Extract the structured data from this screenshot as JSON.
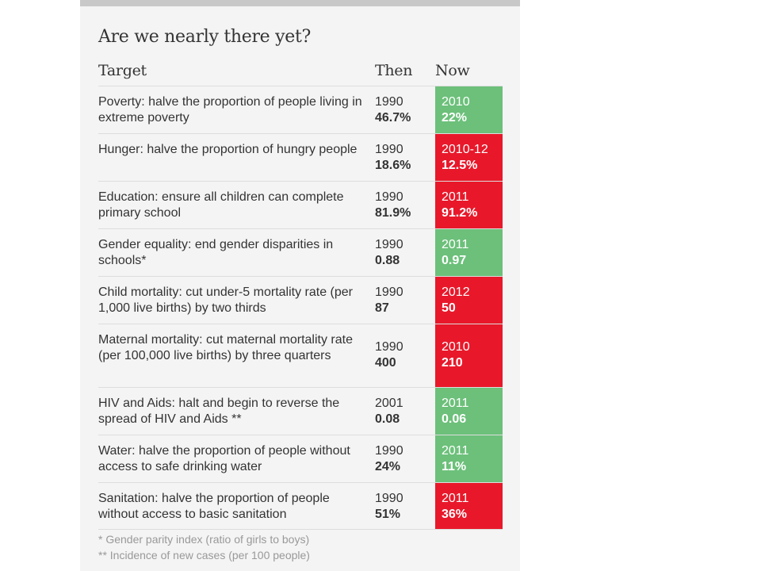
{
  "title": "Are we nearly there yet?",
  "headers": {
    "target": "Target",
    "then": "Then",
    "now": "Now"
  },
  "colors": {
    "on_track": "#6cc07a",
    "off_track": "#e8182a"
  },
  "rows": [
    {
      "target": "Poverty: halve the proportion of people living in extreme poverty",
      "then_year": "1990",
      "then_value": "46.7%",
      "now_year": "2010",
      "now_value": "22%",
      "status": "green"
    },
    {
      "target": "Hunger: halve the proportion of hungry people",
      "then_year": "1990",
      "then_value": "18.6%",
      "now_year": "2010-12",
      "now_value": "12.5%",
      "status": "red"
    },
    {
      "target": "Education: ensure all children can complete primary school",
      "then_year": "1990",
      "then_value": "81.9%",
      "now_year": "2011",
      "now_value": "91.2%",
      "status": "red"
    },
    {
      "target": "Gender equality: end gender disparities in schools*",
      "then_year": "1990",
      "then_value": "0.88",
      "now_year": "2011",
      "now_value": "0.97",
      "status": "green"
    },
    {
      "target": "Child mortality: cut under-5 mortality rate (per 1,000 live births) by two thirds",
      "then_year": "1990",
      "then_value": "87",
      "now_year": "2012",
      "now_value": "50",
      "status": "red"
    },
    {
      "target": "Maternal mortality: cut maternal mortality rate (per 100,000 live births) by three quarters",
      "then_year": "1990",
      "then_value": "400",
      "now_year": "2010",
      "now_value": "210",
      "status": "red"
    },
    {
      "target": "HIV and Aids: halt and begin to reverse the spread of HIV and Aids **",
      "then_year": "2001",
      "then_value": "0.08",
      "now_year": "2011",
      "now_value": "0.06",
      "status": "green"
    },
    {
      "target": "Water: halve the proportion of people without access to safe drinking water",
      "then_year": "1990",
      "then_value": "24%",
      "now_year": "2011",
      "now_value": "11%",
      "status": "green"
    },
    {
      "target": "Sanitation: halve the proportion of people without access to basic sanitation",
      "then_year": "1990",
      "then_value": "51%",
      "now_year": "2011",
      "now_value": "36%",
      "status": "red"
    }
  ],
  "footnotes": [
    "* Gender parity index (ratio of girls to boys)",
    "** Incidence of new cases (per 100 people)"
  ]
}
